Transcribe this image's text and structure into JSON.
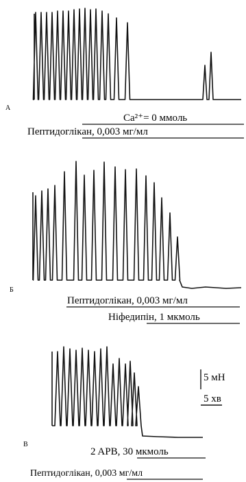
{
  "figure": {
    "scale_force": "5 мН",
    "scale_time": "5 хв"
  },
  "chart_data": [
    {
      "type": "line",
      "panel": "А",
      "trace": "isometric contraction recording",
      "labels": [
        "Ca²⁺= 0 ммоль",
        "Пептидоглікан, 0,003 мг/мл"
      ]
    },
    {
      "type": "line",
      "panel": "Б",
      "trace": "isometric contraction recording",
      "labels": [
        "Пептидоглікан, 0,003 мг/мл",
        "Ніфедипін, 1 мкмоль"
      ]
    },
    {
      "type": "line",
      "panel": "В",
      "trace": "isometric contraction recording",
      "labels": [
        "2 APB, 30 мкмоль",
        "Пептидоглікан, 0,003 мг/мл"
      ]
    }
  ]
}
